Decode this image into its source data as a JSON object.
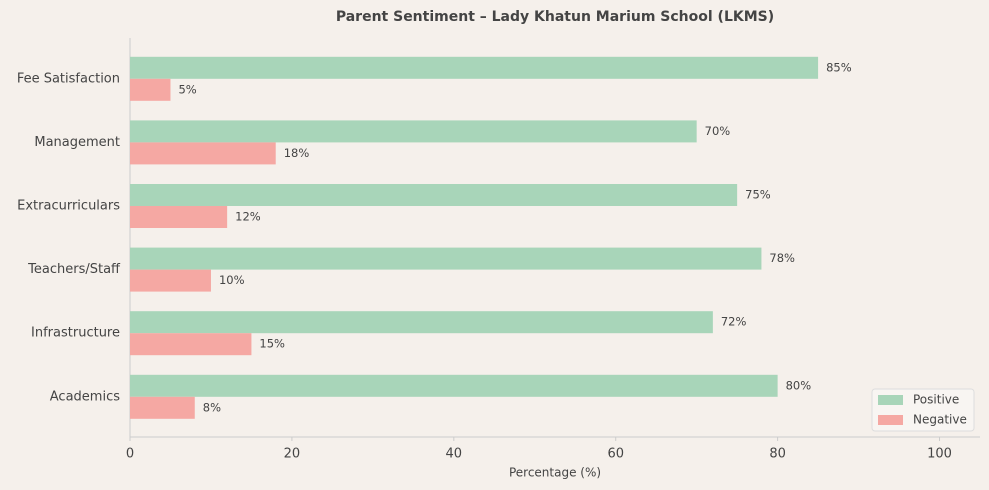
{
  "chart_data": {
    "type": "bar",
    "orientation": "horizontal",
    "title": "Parent Sentiment – Lady Khatun Marium School (LKMS)",
    "x_label": "Percentage (%)",
    "categories": [
      "Fee Satisfaction",
      "Management",
      "Extracurriculars",
      "Teachers/Staff",
      "Infrastructure",
      "Academics"
    ],
    "series": [
      {
        "name": "Positive",
        "color": "#a8d5b9",
        "values": [
          85,
          70,
          75,
          78,
          72,
          80
        ],
        "value_labels": [
          "85%",
          "70%",
          "75%",
          "78%",
          "72%",
          "80%"
        ]
      },
      {
        "name": "Negative",
        "color": "#f5a8a3",
        "values": [
          5,
          18,
          12,
          10,
          15,
          8
        ],
        "value_labels": [
          "5%",
          "18%",
          "12%",
          "10%",
          "15%",
          "8%"
        ]
      }
    ],
    "xlim": [
      0,
      105
    ],
    "xticks": [
      0,
      20,
      40,
      60,
      80,
      100
    ],
    "grid": false,
    "legend": "lower right"
  }
}
